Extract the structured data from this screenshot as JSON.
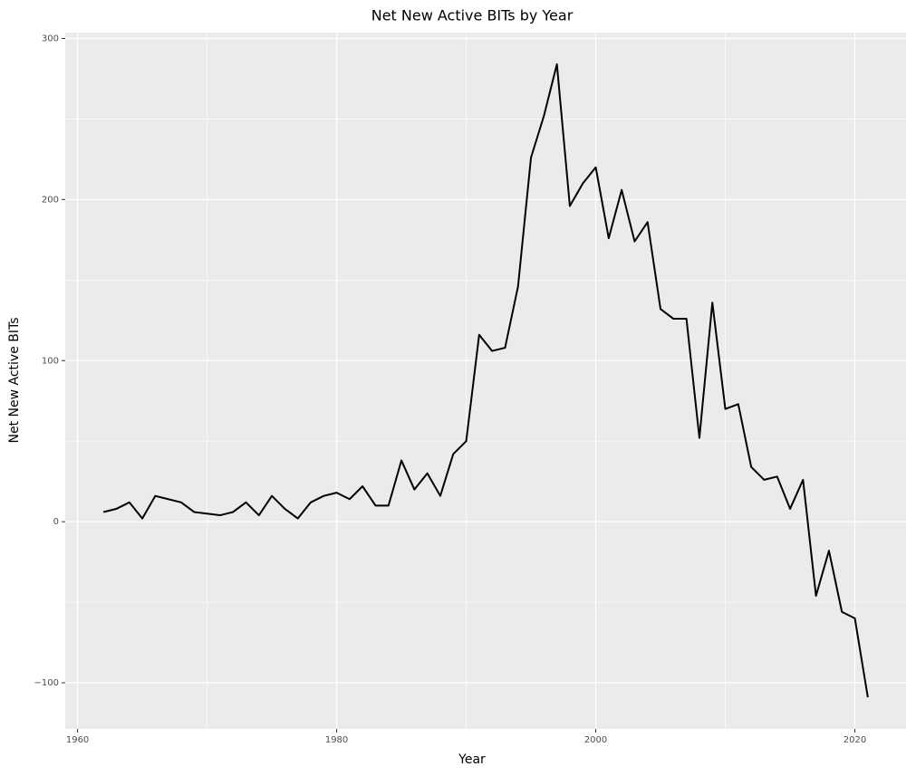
{
  "chart_data": {
    "type": "line",
    "title": "Net New Active BITs by Year",
    "x_label": "Year",
    "y_label": "Net New Active BITs",
    "x": [
      1962,
      1963,
      1964,
      1965,
      1966,
      1967,
      1968,
      1969,
      1970,
      1971,
      1972,
      1973,
      1974,
      1975,
      1976,
      1977,
      1978,
      1979,
      1980,
      1981,
      1982,
      1983,
      1984,
      1985,
      1986,
      1987,
      1988,
      1989,
      1990,
      1991,
      1992,
      1993,
      1994,
      1995,
      1996,
      1997,
      1998,
      1999,
      2000,
      2001,
      2002,
      2003,
      2004,
      2005,
      2006,
      2007,
      2008,
      2009,
      2010,
      2011,
      2012,
      2013,
      2014,
      2015,
      2016,
      2017,
      2018,
      2019,
      2020,
      2021
    ],
    "series": [
      {
        "name": "Net New Active BITs",
        "color": "#000000",
        "values": [
          6,
          8,
          12,
          2,
          16,
          14,
          12,
          6,
          5,
          4,
          6,
          12,
          4,
          16,
          8,
          2,
          12,
          16,
          18,
          14,
          22,
          10,
          10,
          38,
          20,
          30,
          16,
          42,
          50,
          116,
          106,
          108,
          146,
          226,
          252,
          284,
          196,
          210,
          220,
          176,
          206,
          174,
          186,
          132,
          126,
          126,
          52,
          136,
          70,
          73,
          34,
          26,
          28,
          8,
          26,
          -46,
          -18,
          -56,
          -60,
          -109
        ]
      }
    ],
    "xlim": [
      1959.05,
      2023.95
    ],
    "xticks": [
      1960,
      1980,
      2000,
      2020
    ],
    "ylim": [
      -128.65,
      303.65
    ],
    "yticks": [
      {
        "value": -100,
        "label": "−100"
      },
      0,
      100,
      200,
      300
    ],
    "grid": true
  }
}
